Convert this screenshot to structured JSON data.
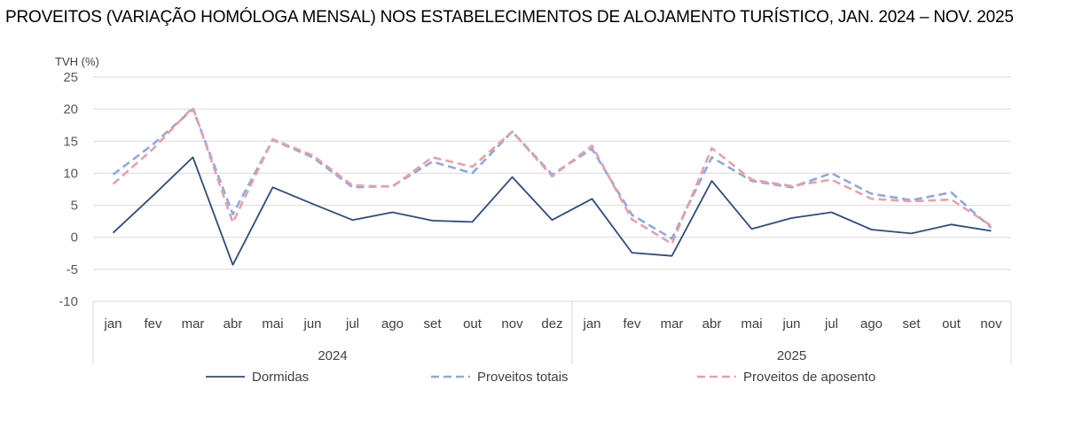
{
  "chart_data": {
    "type": "line",
    "title": "PROVEITOS (VARIAÇÃO HOMÓLOGA MENSAL) NOS ESTABELECIMENTOS DE ALOJAMENTO TURÍSTICO, JAN. 2024 – NOV. 2025",
    "ylabel": "TVH (%)",
    "xlabel": "",
    "ylim": [
      -10,
      25
    ],
    "yticks": [
      25,
      20,
      15,
      10,
      5,
      0,
      -5,
      -10
    ],
    "grid": true,
    "legend_position": "bottom",
    "categories": [
      "jan",
      "fev",
      "mar",
      "abr",
      "mai",
      "jun",
      "jul",
      "ago",
      "set",
      "out",
      "nov",
      "dez",
      "jan",
      "fev",
      "mar",
      "abr",
      "mai",
      "jun",
      "jul",
      "ago",
      "set",
      "out",
      "nov"
    ],
    "groups": [
      {
        "label": "2024",
        "count": 12
      },
      {
        "label": "2025",
        "count": 11
      }
    ],
    "series": [
      {
        "name": "Dormidas",
        "color": "#2F4B7C",
        "style": "solid",
        "values": [
          0.7,
          6.5,
          12.5,
          -4.3,
          7.8,
          5.2,
          2.7,
          3.9,
          2.6,
          2.4,
          9.4,
          2.7,
          6.0,
          -2.4,
          -2.9,
          8.8,
          1.3,
          3.0,
          3.9,
          1.2,
          0.6,
          2.0,
          1.0
        ]
      },
      {
        "name": "Proveitos totais",
        "color": "#8EA9DB",
        "style": "dashed",
        "values": [
          9.8,
          14.5,
          20.0,
          3.6,
          15.2,
          12.5,
          7.8,
          8.0,
          11.8,
          10.0,
          16.5,
          9.8,
          13.8,
          3.5,
          -0.2,
          12.5,
          8.8,
          7.8,
          10.0,
          6.8,
          5.8,
          7.0,
          1.5
        ]
      },
      {
        "name": "Proveitos de aposento",
        "color": "#E6A1A8",
        "style": "dashed",
        "values": [
          8.3,
          13.8,
          20.3,
          2.3,
          15.3,
          12.8,
          8.1,
          7.9,
          12.5,
          11.0,
          16.5,
          9.5,
          14.3,
          2.8,
          -1.0,
          13.9,
          9.0,
          8.0,
          9.0,
          6.0,
          5.6,
          5.9,
          1.8
        ]
      }
    ]
  }
}
